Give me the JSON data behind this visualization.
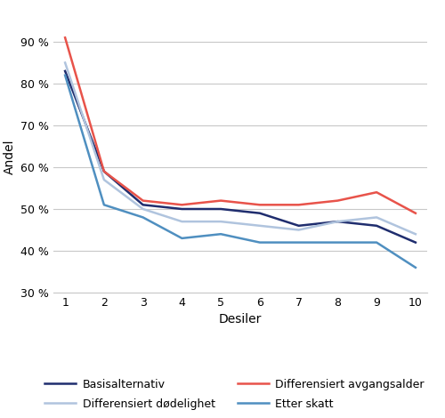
{
  "x": [
    1,
    2,
    3,
    4,
    5,
    6,
    7,
    8,
    9,
    10
  ],
  "series_order": [
    "Basisalternativ",
    "Differensiert avgangsalder",
    "Differensiert dødelighet",
    "Etter skatt"
  ],
  "series": {
    "Basisalternativ": {
      "values": [
        83,
        59,
        51,
        50,
        50,
        49,
        46,
        47,
        46,
        42
      ],
      "color": "#1f2d6e",
      "linewidth": 1.8
    },
    "Differensiert avgangsalder": {
      "values": [
        91,
        59,
        52,
        51,
        52,
        51,
        51,
        52,
        54,
        49
      ],
      "color": "#e8534a",
      "linewidth": 1.8
    },
    "Differensiert dødelighet": {
      "values": [
        85,
        57,
        50,
        47,
        47,
        46,
        45,
        47,
        48,
        44
      ],
      "color": "#b0c4de",
      "linewidth": 1.8
    },
    "Etter skatt": {
      "values": [
        82,
        51,
        48,
        43,
        44,
        42,
        42,
        42,
        42,
        36
      ],
      "color": "#4f8fc0",
      "linewidth": 1.8
    }
  },
  "legend_row1": [
    "Basisalternativ",
    "Differensiert dødelighet"
  ],
  "legend_row2": [
    "Differensiert avgangsalder",
    "Etter skatt"
  ],
  "xlabel": "Desiler",
  "ylabel": "Andel",
  "ylim": [
    30,
    95
  ],
  "yticks": [
    30,
    40,
    50,
    60,
    70,
    80,
    90
  ],
  "xlim": [
    0.7,
    10.3
  ],
  "xticks": [
    1,
    2,
    3,
    4,
    5,
    6,
    7,
    8,
    9,
    10
  ],
  "background_color": "#ffffff",
  "grid_color": "#c8c8c8"
}
